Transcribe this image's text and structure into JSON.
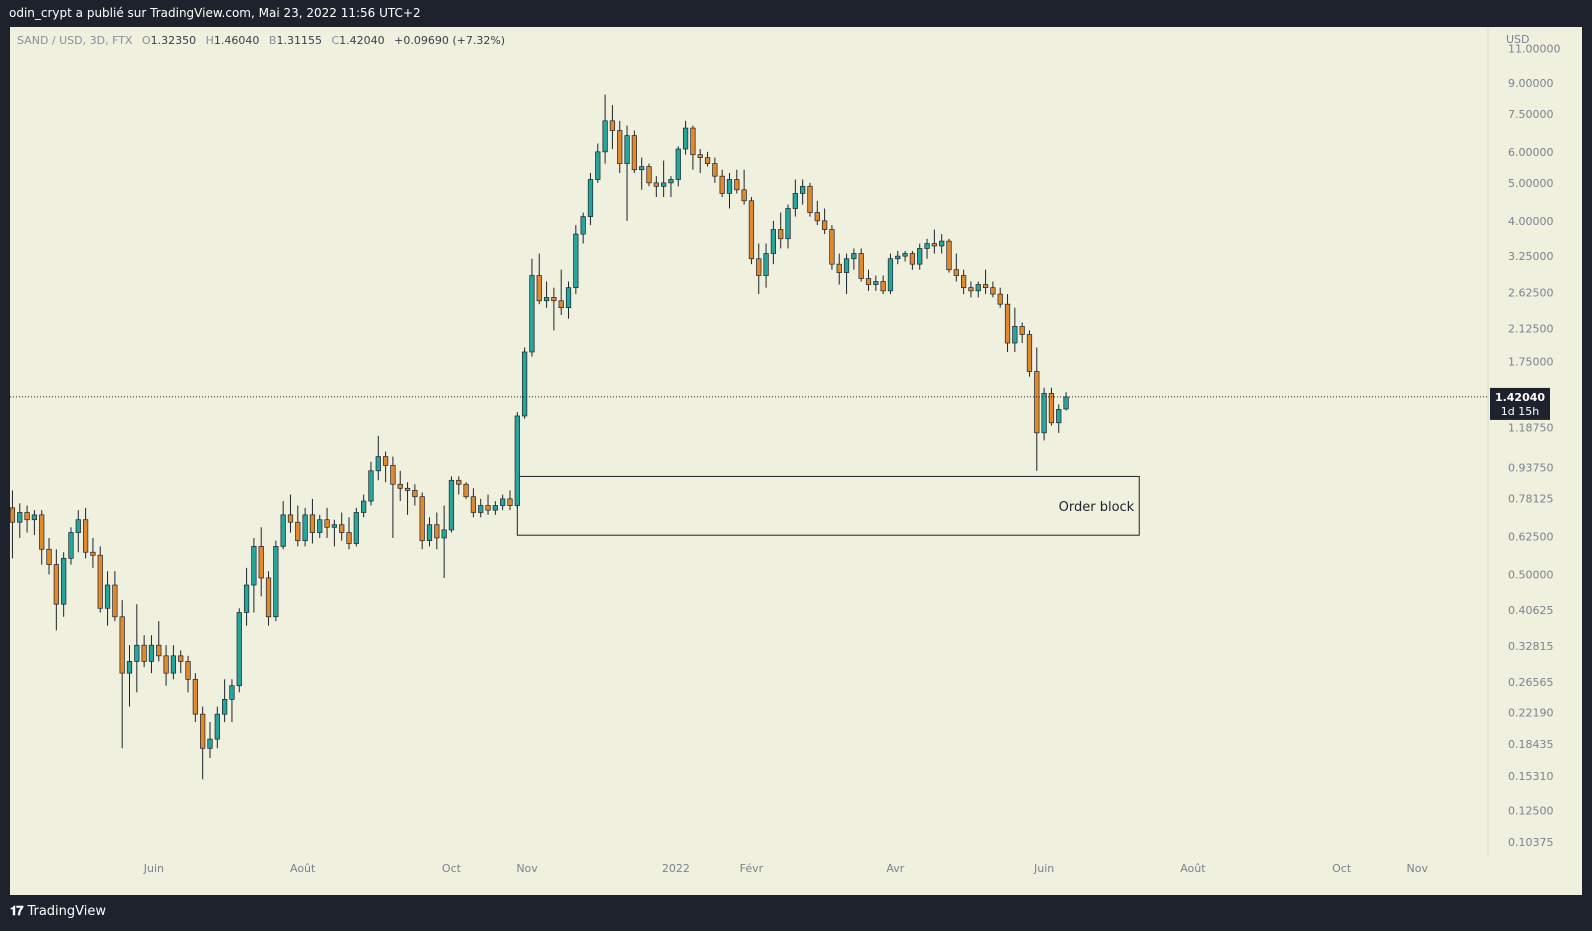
{
  "header": {
    "publisher_line": "odin_crypt a publié sur TradingView.com, Mai 23, 2022 11:56 UTC+2"
  },
  "legend": {
    "symbol": "SAND / USD, 3D, FTX",
    "o_label": "O",
    "o_value": "1.32350",
    "h_label": "H",
    "h_value": "1.46040",
    "l_label": "B",
    "l_value": "1.31155",
    "c_label": "C",
    "c_value": "1.42040",
    "change": "+0.09690 (+7.32%)"
  },
  "colors": {
    "up": "#26a69a",
    "down": "#e08a2c",
    "background": "#f0f0df",
    "frame": "#1e222d"
  },
  "footer": {
    "brand": "TradingView",
    "logo_icon": "tradingview-logo-icon"
  },
  "chart_data": {
    "type": "candlestick",
    "symbol": "SAND / USD",
    "interval": "3D",
    "exchange": "FTX",
    "currency": "USD",
    "y_scale": "log",
    "ylim": [
      0.095,
      12.5
    ],
    "y_ticks": [
      "11.00000",
      "9.00000",
      "7.50000",
      "6.00000",
      "5.00000",
      "4.00000",
      "3.25000",
      "2.62500",
      "2.12500",
      "1.75000",
      "1.18750",
      "0.93750",
      "0.78125",
      "0.62500",
      "0.50000",
      "0.40625",
      "0.32815",
      "0.26565",
      "0.22190",
      "0.18435",
      "0.15310",
      "0.12500",
      "0.10375"
    ],
    "x_ticks": [
      {
        "label": "Juin",
        "date": "2021-06-01"
      },
      {
        "label": "Août",
        "date": "2021-08-01"
      },
      {
        "label": "Oct",
        "date": "2021-10-01"
      },
      {
        "label": "Nov",
        "date": "2021-11-01"
      },
      {
        "label": "2022",
        "date": "2022-01-01"
      },
      {
        "label": "Févr",
        "date": "2022-02-01"
      },
      {
        "label": "Avr",
        "date": "2022-04-01"
      },
      {
        "label": "Juin",
        "date": "2022-06-01"
      },
      {
        "label": "Août",
        "date": "2022-08-01"
      },
      {
        "label": "Oct",
        "date": "2022-10-01"
      },
      {
        "label": "Nov",
        "date": "2022-11-01"
      }
    ],
    "x_range": [
      "2021-04-03",
      "2022-11-30"
    ],
    "last_price": "1.42040",
    "countdown": "1d 15h",
    "annotations": [
      {
        "type": "rectangle",
        "text": "Order block",
        "x_start": "2021-10-28",
        "x_end": "2022-07-10",
        "y_top": 0.89,
        "y_bottom": 0.63
      }
    ],
    "candles": [
      {
        "date": "2021-04-04",
        "o": 0.74,
        "h": 0.82,
        "l": 0.55,
        "c": 0.68
      },
      {
        "date": "2021-04-07",
        "o": 0.68,
        "h": 0.76,
        "l": 0.62,
        "c": 0.72
      },
      {
        "date": "2021-04-10",
        "o": 0.72,
        "h": 0.75,
        "l": 0.64,
        "c": 0.69
      },
      {
        "date": "2021-04-13",
        "o": 0.69,
        "h": 0.73,
        "l": 0.63,
        "c": 0.71
      },
      {
        "date": "2021-04-16",
        "o": 0.71,
        "h": 0.73,
        "l": 0.53,
        "c": 0.58
      },
      {
        "date": "2021-04-19",
        "o": 0.58,
        "h": 0.62,
        "l": 0.5,
        "c": 0.53
      },
      {
        "date": "2021-04-22",
        "o": 0.53,
        "h": 0.58,
        "l": 0.36,
        "c": 0.42
      },
      {
        "date": "2021-04-25",
        "o": 0.42,
        "h": 0.57,
        "l": 0.39,
        "c": 0.55
      },
      {
        "date": "2021-04-28",
        "o": 0.55,
        "h": 0.66,
        "l": 0.53,
        "c": 0.64
      },
      {
        "date": "2021-05-01",
        "o": 0.64,
        "h": 0.73,
        "l": 0.57,
        "c": 0.69
      },
      {
        "date": "2021-05-04",
        "o": 0.69,
        "h": 0.74,
        "l": 0.55,
        "c": 0.57
      },
      {
        "date": "2021-05-07",
        "o": 0.57,
        "h": 0.62,
        "l": 0.52,
        "c": 0.56
      },
      {
        "date": "2021-05-10",
        "o": 0.56,
        "h": 0.59,
        "l": 0.4,
        "c": 0.41
      },
      {
        "date": "2021-05-13",
        "o": 0.41,
        "h": 0.51,
        "l": 0.37,
        "c": 0.47
      },
      {
        "date": "2021-05-16",
        "o": 0.47,
        "h": 0.51,
        "l": 0.38,
        "c": 0.39
      },
      {
        "date": "2021-05-19",
        "o": 0.39,
        "h": 0.43,
        "l": 0.18,
        "c": 0.28
      },
      {
        "date": "2021-05-22",
        "o": 0.28,
        "h": 0.33,
        "l": 0.23,
        "c": 0.3
      },
      {
        "date": "2021-05-25",
        "o": 0.3,
        "h": 0.42,
        "l": 0.25,
        "c": 0.33
      },
      {
        "date": "2021-05-28",
        "o": 0.33,
        "h": 0.35,
        "l": 0.29,
        "c": 0.3
      },
      {
        "date": "2021-05-31",
        "o": 0.3,
        "h": 0.35,
        "l": 0.28,
        "c": 0.33
      },
      {
        "date": "2021-06-03",
        "o": 0.33,
        "h": 0.38,
        "l": 0.3,
        "c": 0.31
      },
      {
        "date": "2021-06-06",
        "o": 0.31,
        "h": 0.33,
        "l": 0.26,
        "c": 0.28
      },
      {
        "date": "2021-06-09",
        "o": 0.28,
        "h": 0.33,
        "l": 0.27,
        "c": 0.31
      },
      {
        "date": "2021-06-12",
        "o": 0.31,
        "h": 0.32,
        "l": 0.28,
        "c": 0.3
      },
      {
        "date": "2021-06-15",
        "o": 0.3,
        "h": 0.31,
        "l": 0.25,
        "c": 0.27
      },
      {
        "date": "2021-06-18",
        "o": 0.27,
        "h": 0.28,
        "l": 0.21,
        "c": 0.22
      },
      {
        "date": "2021-06-21",
        "o": 0.22,
        "h": 0.23,
        "l": 0.15,
        "c": 0.18
      },
      {
        "date": "2021-06-24",
        "o": 0.18,
        "h": 0.21,
        "l": 0.17,
        "c": 0.19
      },
      {
        "date": "2021-06-27",
        "o": 0.19,
        "h": 0.23,
        "l": 0.18,
        "c": 0.22
      },
      {
        "date": "2021-06-30",
        "o": 0.22,
        "h": 0.27,
        "l": 0.21,
        "c": 0.24
      },
      {
        "date": "2021-07-03",
        "o": 0.24,
        "h": 0.27,
        "l": 0.21,
        "c": 0.26
      },
      {
        "date": "2021-07-06",
        "o": 0.26,
        "h": 0.41,
        "l": 0.25,
        "c": 0.4
      },
      {
        "date": "2021-07-09",
        "o": 0.4,
        "h": 0.52,
        "l": 0.37,
        "c": 0.47
      },
      {
        "date": "2021-07-12",
        "o": 0.47,
        "h": 0.62,
        "l": 0.4,
        "c": 0.59
      },
      {
        "date": "2021-07-15",
        "o": 0.59,
        "h": 0.66,
        "l": 0.44,
        "c": 0.49
      },
      {
        "date": "2021-07-18",
        "o": 0.49,
        "h": 0.51,
        "l": 0.37,
        "c": 0.39
      },
      {
        "date": "2021-07-21",
        "o": 0.39,
        "h": 0.61,
        "l": 0.38,
        "c": 0.59
      },
      {
        "date": "2021-07-24",
        "o": 0.59,
        "h": 0.77,
        "l": 0.58,
        "c": 0.71
      },
      {
        "date": "2021-07-27",
        "o": 0.71,
        "h": 0.8,
        "l": 0.64,
        "c": 0.68
      },
      {
        "date": "2021-07-30",
        "o": 0.68,
        "h": 0.75,
        "l": 0.59,
        "c": 0.61
      },
      {
        "date": "2021-08-02",
        "o": 0.61,
        "h": 0.74,
        "l": 0.59,
        "c": 0.71
      },
      {
        "date": "2021-08-05",
        "o": 0.71,
        "h": 0.78,
        "l": 0.6,
        "c": 0.64
      },
      {
        "date": "2021-08-08",
        "o": 0.64,
        "h": 0.71,
        "l": 0.62,
        "c": 0.69
      },
      {
        "date": "2021-08-11",
        "o": 0.69,
        "h": 0.74,
        "l": 0.62,
        "c": 0.66
      },
      {
        "date": "2021-08-14",
        "o": 0.66,
        "h": 0.69,
        "l": 0.59,
        "c": 0.67
      },
      {
        "date": "2021-08-17",
        "o": 0.67,
        "h": 0.72,
        "l": 0.61,
        "c": 0.64
      },
      {
        "date": "2021-08-20",
        "o": 0.64,
        "h": 0.7,
        "l": 0.58,
        "c": 0.6
      },
      {
        "date": "2021-08-23",
        "o": 0.6,
        "h": 0.74,
        "l": 0.59,
        "c": 0.72
      },
      {
        "date": "2021-08-26",
        "o": 0.72,
        "h": 0.8,
        "l": 0.7,
        "c": 0.77
      },
      {
        "date": "2021-08-29",
        "o": 0.77,
        "h": 0.97,
        "l": 0.75,
        "c": 0.92
      },
      {
        "date": "2021-09-01",
        "o": 0.92,
        "h": 1.13,
        "l": 0.87,
        "c": 1.0
      },
      {
        "date": "2021-09-04",
        "o": 1.0,
        "h": 1.03,
        "l": 0.86,
        "c": 0.95
      },
      {
        "date": "2021-09-07",
        "o": 0.95,
        "h": 1.0,
        "l": 0.62,
        "c": 0.85
      },
      {
        "date": "2021-09-10",
        "o": 0.85,
        "h": 0.92,
        "l": 0.77,
        "c": 0.83
      },
      {
        "date": "2021-09-13",
        "o": 0.83,
        "h": 0.86,
        "l": 0.71,
        "c": 0.82
      },
      {
        "date": "2021-09-16",
        "o": 0.82,
        "h": 0.85,
        "l": 0.75,
        "c": 0.79
      },
      {
        "date": "2021-09-19",
        "o": 0.79,
        "h": 0.81,
        "l": 0.58,
        "c": 0.61
      },
      {
        "date": "2021-09-22",
        "o": 0.61,
        "h": 0.7,
        "l": 0.59,
        "c": 0.67
      },
      {
        "date": "2021-09-25",
        "o": 0.67,
        "h": 0.72,
        "l": 0.58,
        "c": 0.62
      },
      {
        "date": "2021-09-28",
        "o": 0.62,
        "h": 0.75,
        "l": 0.49,
        "c": 0.65
      },
      {
        "date": "2021-10-01",
        "o": 0.65,
        "h": 0.89,
        "l": 0.64,
        "c": 0.87
      },
      {
        "date": "2021-10-04",
        "o": 0.87,
        "h": 0.89,
        "l": 0.8,
        "c": 0.85
      },
      {
        "date": "2021-10-07",
        "o": 0.85,
        "h": 0.86,
        "l": 0.78,
        "c": 0.79
      },
      {
        "date": "2021-10-10",
        "o": 0.79,
        "h": 0.83,
        "l": 0.7,
        "c": 0.72
      },
      {
        "date": "2021-10-13",
        "o": 0.72,
        "h": 0.78,
        "l": 0.7,
        "c": 0.75
      },
      {
        "date": "2021-10-16",
        "o": 0.75,
        "h": 0.8,
        "l": 0.71,
        "c": 0.73
      },
      {
        "date": "2021-10-19",
        "o": 0.73,
        "h": 0.77,
        "l": 0.71,
        "c": 0.75
      },
      {
        "date": "2021-10-22",
        "o": 0.75,
        "h": 0.8,
        "l": 0.73,
        "c": 0.78
      },
      {
        "date": "2021-10-25",
        "o": 0.78,
        "h": 0.82,
        "l": 0.73,
        "c": 0.75
      },
      {
        "date": "2021-10-28",
        "o": 0.75,
        "h": 1.3,
        "l": 0.74,
        "c": 1.27
      },
      {
        "date": "2021-10-31",
        "o": 1.27,
        "h": 1.9,
        "l": 1.25,
        "c": 1.85
      },
      {
        "date": "2021-11-03",
        "o": 1.85,
        "h": 3.2,
        "l": 1.8,
        "c": 2.9
      },
      {
        "date": "2021-11-06",
        "o": 2.9,
        "h": 3.3,
        "l": 2.45,
        "c": 2.5
      },
      {
        "date": "2021-11-09",
        "o": 2.5,
        "h": 2.8,
        "l": 2.4,
        "c": 2.55
      },
      {
        "date": "2021-11-12",
        "o": 2.55,
        "h": 2.7,
        "l": 2.1,
        "c": 2.5
      },
      {
        "date": "2021-11-15",
        "o": 2.5,
        "h": 3.0,
        "l": 2.3,
        "c": 2.4
      },
      {
        "date": "2021-11-18",
        "o": 2.4,
        "h": 2.8,
        "l": 2.25,
        "c": 2.7
      },
      {
        "date": "2021-11-21",
        "o": 2.7,
        "h": 3.9,
        "l": 2.6,
        "c": 3.7
      },
      {
        "date": "2021-11-24",
        "o": 3.7,
        "h": 4.2,
        "l": 3.5,
        "c": 4.1
      },
      {
        "date": "2021-11-27",
        "o": 4.1,
        "h": 5.3,
        "l": 3.9,
        "c": 5.1
      },
      {
        "date": "2021-11-30",
        "o": 5.1,
        "h": 6.3,
        "l": 5.0,
        "c": 6.0
      },
      {
        "date": "2021-12-03",
        "o": 6.0,
        "h": 8.4,
        "l": 5.6,
        "c": 7.2
      },
      {
        "date": "2021-12-06",
        "o": 7.2,
        "h": 7.9,
        "l": 6.1,
        "c": 6.8
      },
      {
        "date": "2021-12-09",
        "o": 6.8,
        "h": 7.2,
        "l": 5.3,
        "c": 5.6
      },
      {
        "date": "2021-12-12",
        "o": 5.6,
        "h": 7.0,
        "l": 4.0,
        "c": 6.6
      },
      {
        "date": "2021-12-15",
        "o": 6.6,
        "h": 6.8,
        "l": 5.3,
        "c": 5.4
      },
      {
        "date": "2021-12-18",
        "o": 5.4,
        "h": 5.8,
        "l": 4.8,
        "c": 5.5
      },
      {
        "date": "2021-12-21",
        "o": 5.5,
        "h": 5.6,
        "l": 4.9,
        "c": 5.0
      },
      {
        "date": "2021-12-24",
        "o": 5.0,
        "h": 5.2,
        "l": 4.6,
        "c": 4.9
      },
      {
        "date": "2021-12-27",
        "o": 4.9,
        "h": 5.7,
        "l": 4.6,
        "c": 5.0
      },
      {
        "date": "2021-12-30",
        "o": 5.0,
        "h": 5.2,
        "l": 4.6,
        "c": 5.1
      },
      {
        "date": "2022-01-02",
        "o": 5.1,
        "h": 6.2,
        "l": 4.9,
        "c": 6.1
      },
      {
        "date": "2022-01-05",
        "o": 6.1,
        "h": 7.2,
        "l": 5.9,
        "c": 6.9
      },
      {
        "date": "2022-01-08",
        "o": 6.9,
        "h": 7.0,
        "l": 5.4,
        "c": 5.9
      },
      {
        "date": "2022-01-11",
        "o": 5.9,
        "h": 6.1,
        "l": 5.3,
        "c": 5.8
      },
      {
        "date": "2022-01-14",
        "o": 5.8,
        "h": 6.0,
        "l": 5.5,
        "c": 5.6
      },
      {
        "date": "2022-01-17",
        "o": 5.6,
        "h": 5.8,
        "l": 5.0,
        "c": 5.2
      },
      {
        "date": "2022-01-20",
        "o": 5.2,
        "h": 5.4,
        "l": 4.6,
        "c": 4.7
      },
      {
        "date": "2022-01-23",
        "o": 4.7,
        "h": 5.3,
        "l": 4.3,
        "c": 5.1
      },
      {
        "date": "2022-01-26",
        "o": 5.1,
        "h": 5.4,
        "l": 4.7,
        "c": 4.8
      },
      {
        "date": "2022-01-29",
        "o": 4.8,
        "h": 5.4,
        "l": 4.4,
        "c": 4.5
      },
      {
        "date": "2022-02-01",
        "o": 4.5,
        "h": 4.6,
        "l": 3.1,
        "c": 3.2
      },
      {
        "date": "2022-02-04",
        "o": 3.2,
        "h": 3.5,
        "l": 2.6,
        "c": 2.9
      },
      {
        "date": "2022-02-07",
        "o": 2.9,
        "h": 3.5,
        "l": 2.7,
        "c": 3.3
      },
      {
        "date": "2022-02-10",
        "o": 3.3,
        "h": 4.0,
        "l": 3.1,
        "c": 3.8
      },
      {
        "date": "2022-02-13",
        "o": 3.8,
        "h": 4.2,
        "l": 3.4,
        "c": 3.6
      },
      {
        "date": "2022-02-16",
        "o": 3.6,
        "h": 4.4,
        "l": 3.4,
        "c": 4.3
      },
      {
        "date": "2022-02-19",
        "o": 4.3,
        "h": 5.1,
        "l": 4.1,
        "c": 4.7
      },
      {
        "date": "2022-02-22",
        "o": 4.7,
        "h": 5.1,
        "l": 4.4,
        "c": 4.9
      },
      {
        "date": "2022-02-25",
        "o": 4.9,
        "h": 5.0,
        "l": 4.1,
        "c": 4.2
      },
      {
        "date": "2022-02-28",
        "o": 4.2,
        "h": 4.5,
        "l": 3.9,
        "c": 4.0
      },
      {
        "date": "2022-03-03",
        "o": 4.0,
        "h": 4.3,
        "l": 3.7,
        "c": 3.8
      },
      {
        "date": "2022-03-06",
        "o": 3.8,
        "h": 3.9,
        "l": 3.0,
        "c": 3.1
      },
      {
        "date": "2022-03-09",
        "o": 3.1,
        "h": 3.3,
        "l": 2.75,
        "c": 2.95
      },
      {
        "date": "2022-03-12",
        "o": 2.95,
        "h": 3.3,
        "l": 2.6,
        "c": 3.2
      },
      {
        "date": "2022-03-15",
        "o": 3.2,
        "h": 3.4,
        "l": 3.0,
        "c": 3.3
      },
      {
        "date": "2022-03-18",
        "o": 3.3,
        "h": 3.4,
        "l": 2.8,
        "c": 2.85
      },
      {
        "date": "2022-03-21",
        "o": 2.85,
        "h": 3.0,
        "l": 2.65,
        "c": 2.75
      },
      {
        "date": "2022-03-24",
        "o": 2.75,
        "h": 2.9,
        "l": 2.65,
        "c": 2.8
      },
      {
        "date": "2022-03-27",
        "o": 2.8,
        "h": 2.9,
        "l": 2.6,
        "c": 2.65
      },
      {
        "date": "2022-03-30",
        "o": 2.65,
        "h": 3.3,
        "l": 2.6,
        "c": 3.2
      },
      {
        "date": "2022-04-02",
        "o": 3.2,
        "h": 3.35,
        "l": 3.1,
        "c": 3.25
      },
      {
        "date": "2022-04-05",
        "o": 3.25,
        "h": 3.35,
        "l": 3.15,
        "c": 3.3
      },
      {
        "date": "2022-04-08",
        "o": 3.3,
        "h": 3.35,
        "l": 3.0,
        "c": 3.1
      },
      {
        "date": "2022-04-11",
        "o": 3.1,
        "h": 3.5,
        "l": 3.0,
        "c": 3.4
      },
      {
        "date": "2022-04-14",
        "o": 3.4,
        "h": 3.6,
        "l": 3.2,
        "c": 3.5
      },
      {
        "date": "2022-04-17",
        "o": 3.5,
        "h": 3.8,
        "l": 3.3,
        "c": 3.45
      },
      {
        "date": "2022-04-20",
        "o": 3.45,
        "h": 3.7,
        "l": 3.3,
        "c": 3.55
      },
      {
        "date": "2022-04-23",
        "o": 3.55,
        "h": 3.6,
        "l": 2.95,
        "c": 3.0
      },
      {
        "date": "2022-04-26",
        "o": 3.0,
        "h": 3.3,
        "l": 2.8,
        "c": 2.9
      },
      {
        "date": "2022-04-29",
        "o": 2.9,
        "h": 3.0,
        "l": 2.6,
        "c": 2.7
      },
      {
        "date": "2022-05-02",
        "o": 2.7,
        "h": 2.8,
        "l": 2.55,
        "c": 2.65
      },
      {
        "date": "2022-05-05",
        "o": 2.65,
        "h": 2.8,
        "l": 2.55,
        "c": 2.75
      },
      {
        "date": "2022-05-08",
        "o": 2.75,
        "h": 3.0,
        "l": 2.6,
        "c": 2.7
      },
      {
        "date": "2022-05-11",
        "o": 2.7,
        "h": 2.8,
        "l": 2.55,
        "c": 2.6
      },
      {
        "date": "2022-05-14",
        "o": 2.6,
        "h": 2.7,
        "l": 2.4,
        "c": 2.45
      },
      {
        "date": "2022-05-17",
        "o": 2.45,
        "h": 2.6,
        "l": 1.85,
        "c": 1.95
      },
      {
        "date": "2022-05-20",
        "o": 1.95,
        "h": 2.4,
        "l": 1.85,
        "c": 2.15
      },
      {
        "date": "2022-05-23",
        "o": 2.15,
        "h": 2.2,
        "l": 1.95,
        "c": 2.05
      },
      {
        "date": "2022-05-26",
        "o": 2.05,
        "h": 2.1,
        "l": 1.6,
        "c": 1.65
      },
      {
        "date": "2022-05-29",
        "o": 1.65,
        "h": 1.9,
        "l": 0.92,
        "c": 1.15
      },
      {
        "date": "2022-06-01",
        "o": 1.15,
        "h": 1.5,
        "l": 1.1,
        "c": 1.45
      },
      {
        "date": "2022-06-04",
        "o": 1.45,
        "h": 1.5,
        "l": 1.2,
        "c": 1.22
      },
      {
        "date": "2022-06-07",
        "o": 1.22,
        "h": 1.36,
        "l": 1.15,
        "c": 1.32
      },
      {
        "date": "2022-06-10",
        "o": 1.3235,
        "h": 1.4604,
        "l": 1.31155,
        "c": 1.4204
      }
    ]
  }
}
